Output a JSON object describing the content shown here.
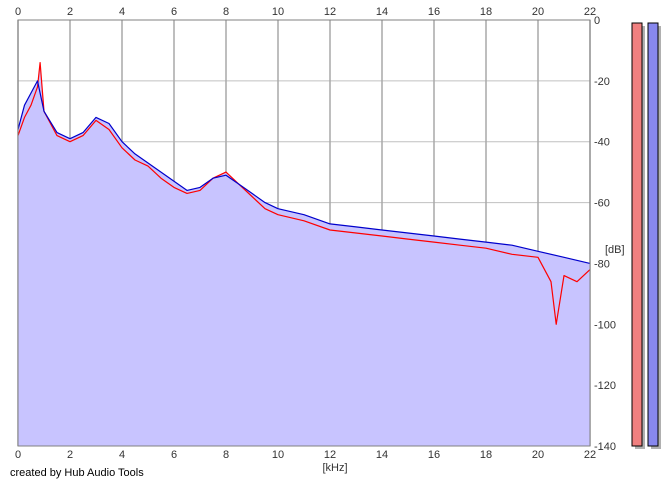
{
  "credit": "created by Hub Audio Tools",
  "chart_data": {
    "type": "line",
    "title": "",
    "xlabel": "[kHz]",
    "ylabel": "[dB]",
    "xlim": [
      0,
      22
    ],
    "ylim": [
      -140,
      0
    ],
    "xticks": [
      0,
      2,
      4,
      6,
      8,
      10,
      12,
      14,
      16,
      18,
      20,
      22
    ],
    "yticks": [
      0,
      -20,
      -40,
      -60,
      -80,
      -100,
      -120,
      -140
    ],
    "xtick_labels": [
      "0",
      "2",
      "4",
      "6",
      "8",
      "10",
      "12",
      "14",
      "16",
      "18",
      "20",
      "22"
    ],
    "ytick_labels": [
      "0",
      "-20",
      "-40",
      "-60",
      "-80",
      "-100",
      "-120",
      "-140"
    ],
    "grid": true,
    "series": [
      {
        "color": "#ff0000",
        "x": [
          0,
          0.25,
          0.5,
          0.75,
          0.85,
          1,
          1.5,
          2,
          2.5,
          3,
          3.5,
          4,
          4.5,
          5,
          5.5,
          6,
          6.5,
          7,
          7.5,
          8,
          8.5,
          9,
          9.5,
          10,
          11,
          12,
          13,
          14,
          15,
          16,
          17,
          18,
          19,
          20,
          20.5,
          20.7,
          21,
          21.5,
          22
        ],
        "y": [
          -38,
          -32,
          -28,
          -22,
          -14,
          -30,
          -38,
          -40,
          -38,
          -33,
          -36,
          -42,
          -46,
          -48,
          -52,
          -55,
          -57,
          -56,
          -52,
          -50,
          -54,
          -58,
          -62,
          -64,
          -66,
          -69,
          -70,
          -71,
          -72,
          -73,
          -74,
          -75,
          -77,
          -78,
          -86,
          -100,
          -84,
          -86,
          -82
        ]
      },
      {
        "color": "#0000cc",
        "x": [
          0,
          0.25,
          0.5,
          0.75,
          1,
          1.5,
          2,
          2.5,
          3,
          3.5,
          4,
          4.5,
          5,
          5.5,
          6,
          6.5,
          7,
          7.5,
          8,
          8.5,
          9,
          9.5,
          10,
          11,
          12,
          13,
          14,
          15,
          16,
          17,
          18,
          19,
          20,
          21,
          22
        ],
        "y": [
          -36,
          -28,
          -24,
          -20,
          -30,
          -37,
          -39,
          -37,
          -32,
          -34,
          -40,
          -44,
          -47,
          -50,
          -53,
          -56,
          -55,
          -52,
          -51,
          -54,
          -57,
          -60,
          -62,
          -64,
          -67,
          -68,
          -69,
          -70,
          -71,
          -72,
          -73,
          -74,
          -76,
          -78,
          -80
        ]
      }
    ],
    "fill": {
      "color": "#c8c4ff",
      "baseline": -140
    },
    "level_meters": [
      {
        "channel": "left",
        "color": "#f08080",
        "level_db": 0
      },
      {
        "channel": "right",
        "color": "#8888ee",
        "level_db": 0
      }
    ]
  }
}
